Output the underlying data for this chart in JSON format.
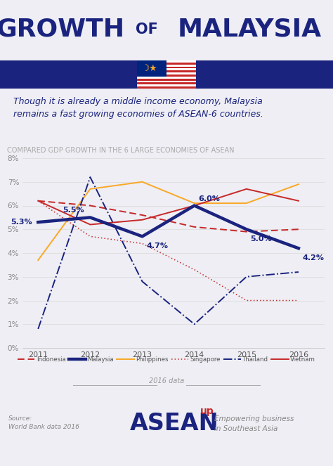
{
  "title_text": "GROWTH OF MALAYSIA",
  "subtitle": "Though it is already a middle income economy, Malaysia\nremains a fast growing economies of ASEAN-6 countries.",
  "chart_title": "COMPARED GDP GROWTH IN THE 6 LARGE ECONOMIES OF ASEAN",
  "years": [
    2011,
    2012,
    2013,
    2014,
    2015,
    2016
  ],
  "malaysia": [
    5.3,
    5.5,
    4.7,
    6.0,
    5.0,
    4.2
  ],
  "indonesia": [
    6.2,
    6.0,
    5.6,
    5.1,
    4.9,
    5.0
  ],
  "philippines": [
    3.7,
    6.7,
    7.0,
    6.1,
    6.1,
    6.9
  ],
  "singapore": [
    6.2,
    4.7,
    4.4,
    3.3,
    2.0,
    2.0
  ],
  "thailand": [
    0.8,
    7.2,
    2.8,
    1.0,
    3.0,
    3.2
  ],
  "vietnam": [
    6.2,
    5.2,
    5.4,
    6.0,
    6.7,
    6.2
  ],
  "malaysia_color": "#1a237e",
  "indonesia_color": "#c62828",
  "philippines_color": "#f9a825",
  "singapore_color": "#c62828",
  "thailand_color": "#1a237e",
  "vietnam_color": "#c62828",
  "bg_color": "#eeeef4",
  "flag_left_color": "#1a237e",
  "flag_right_color": "#1a237e",
  "flag_red_color": "#c62828",
  "flag_white_color": "#ffffff",
  "flag_yellow_color": "#f9a825",
  "ylim": [
    0,
    8
  ],
  "yticks": [
    0,
    1,
    2,
    3,
    4,
    5,
    6,
    7,
    8
  ],
  "source_text": "Source:\nWorld Bank data 2016",
  "footer_line_text": "2016 data",
  "asean_text": "ASEAN",
  "up_text": "up",
  "empower_text": "Empowering business\nin Southeast Asia",
  "title_color": "#1a237e",
  "subtitle_color": "#1a237e",
  "chart_title_color": "#aaaaaa",
  "tick_color": "#888888",
  "grid_color": "#dddddd",
  "legend_color": "#555555",
  "source_color": "#888888",
  "footer_line_color": "#aaaaaa",
  "asean_color": "#1a237e",
  "up_color": "#c62828",
  "empower_color": "#888888"
}
